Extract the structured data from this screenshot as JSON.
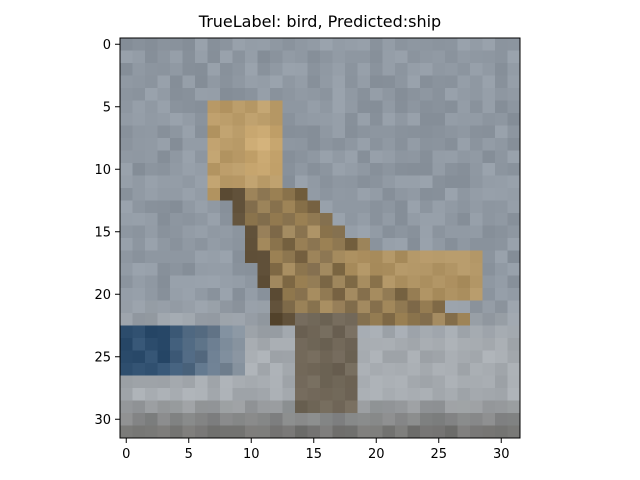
{
  "figure": {
    "title": "TrueLabel: bird, Predicted:ship"
  },
  "image": {
    "grid_size": 32,
    "depicts": "pixelated photo of a bird perched on a light surface",
    "axes": {
      "x_ticks": [
        0,
        5,
        10,
        15,
        20,
        25,
        30
      ],
      "y_ticks": [
        0,
        5,
        10,
        15,
        20,
        25,
        30
      ],
      "xlim": [
        -0.5,
        31.5
      ],
      "ylim": [
        31.5,
        -0.5
      ]
    },
    "colors": {
      "sky": "#8f98a2",
      "bird_light": "#c9a871",
      "bird_mid": "#a48a5d",
      "bird_dark": "#5a4a33",
      "ground": "#a6abb0",
      "blue_strip": "#2e4e6e",
      "bottom_dark": "#5f5c57"
    }
  }
}
